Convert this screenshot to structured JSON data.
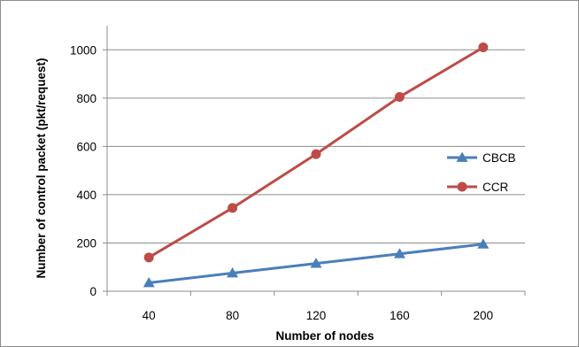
{
  "chart_data": {
    "type": "line",
    "title": "",
    "xlabel": "Number of nodes",
    "ylabel": "Number of control packet (pkt/request)",
    "categories": [
      "40",
      "80",
      "120",
      "160",
      "200"
    ],
    "ylim": [
      0,
      1100
    ],
    "yticks": [
      0,
      200,
      400,
      600,
      800,
      1000
    ],
    "grid": true,
    "legend_position": "right",
    "series": [
      {
        "name": "CBCB",
        "color": "#4a7ebb",
        "marker": "triangle",
        "values": [
          35,
          75,
          115,
          155,
          195
        ]
      },
      {
        "name": "CCR",
        "color": "#be4b48",
        "marker": "circle",
        "values": [
          140,
          345,
          568,
          805,
          1010
        ]
      }
    ]
  }
}
